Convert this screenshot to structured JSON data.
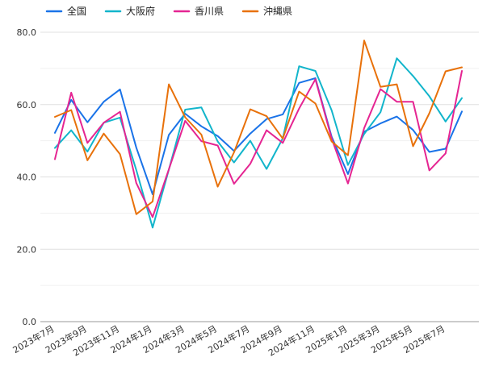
{
  "chart_data": {
    "type": "line",
    "x": [
      "2023年7月",
      "2023年8月",
      "2023年9月",
      "2023年10月",
      "2023年11月",
      "2023年12月",
      "2024年1月",
      "2024年2月",
      "2024年3月",
      "2024年4月",
      "2024年5月",
      "2024年6月",
      "2024年7月",
      "2024年8月",
      "2024年9月",
      "2024年10月",
      "2024年11月",
      "2024年12月",
      "2025年1月",
      "2025年2月",
      "2025年3月",
      "2025年4月",
      "2025年5月",
      "2025年6月",
      "2025年7月",
      "2025年8月"
    ],
    "x_tick_labels": [
      "2023年7月",
      "2023年9月",
      "2023年11月",
      "2024年1月",
      "2024年3月",
      "2024年5月",
      "2024年7月",
      "2024年9月",
      "2024年11月",
      "2025年1月",
      "2025年3月",
      "2025年5月",
      "2025年7月"
    ],
    "y_ticks": [
      "0.0",
      "20.0",
      "40.0",
      "60.0",
      "80.0"
    ],
    "ylim": [
      0,
      80
    ],
    "grid": true,
    "legend_position": "top-left",
    "series": [
      {
        "name": "全国",
        "color": "#1a73e8",
        "values": [
          52.2,
          61.3,
          55.1,
          60.8,
          64.2,
          48.1,
          35.2,
          51.6,
          57.5,
          54.0,
          51.3,
          47.2,
          52.0,
          56.0,
          57.3,
          66.0,
          67.3,
          51.1,
          40.8,
          52.5,
          54.8,
          56.7,
          53.0,
          46.9,
          47.8,
          58.1
        ]
      },
      {
        "name": "大阪府",
        "color": "#12b5cb",
        "values": [
          48.0,
          52.9,
          47.0,
          55.0,
          56.4,
          41.9,
          26.0,
          42.0,
          58.6,
          59.2,
          49.8,
          44.0,
          50.0,
          42.2,
          50.7,
          70.6,
          69.3,
          58.4,
          43.3,
          51.9,
          57.9,
          72.8,
          67.9,
          62.3,
          55.3,
          61.8
        ]
      },
      {
        "name": "香川県",
        "color": "#e52592",
        "values": [
          44.9,
          63.3,
          49.4,
          55.0,
          58.0,
          38.3,
          28.9,
          42.1,
          55.5,
          49.9,
          48.7,
          38.1,
          43.6,
          52.9,
          49.4,
          58.9,
          67.0,
          50.6,
          38.2,
          53.5,
          64.3,
          60.8,
          60.8,
          41.8,
          46.5,
          69.3
        ]
      },
      {
        "name": "沖縄県",
        "color": "#e8710a",
        "values": [
          56.6,
          58.5,
          44.6,
          52.0,
          46.3,
          29.7,
          33.2,
          65.6,
          56.5,
          51.7,
          37.3,
          46.8,
          58.7,
          56.8,
          50.6,
          63.6,
          60.3,
          49.8,
          46.0,
          77.7,
          64.9,
          65.6,
          48.5,
          57.6,
          69.2,
          70.3
        ]
      }
    ]
  }
}
